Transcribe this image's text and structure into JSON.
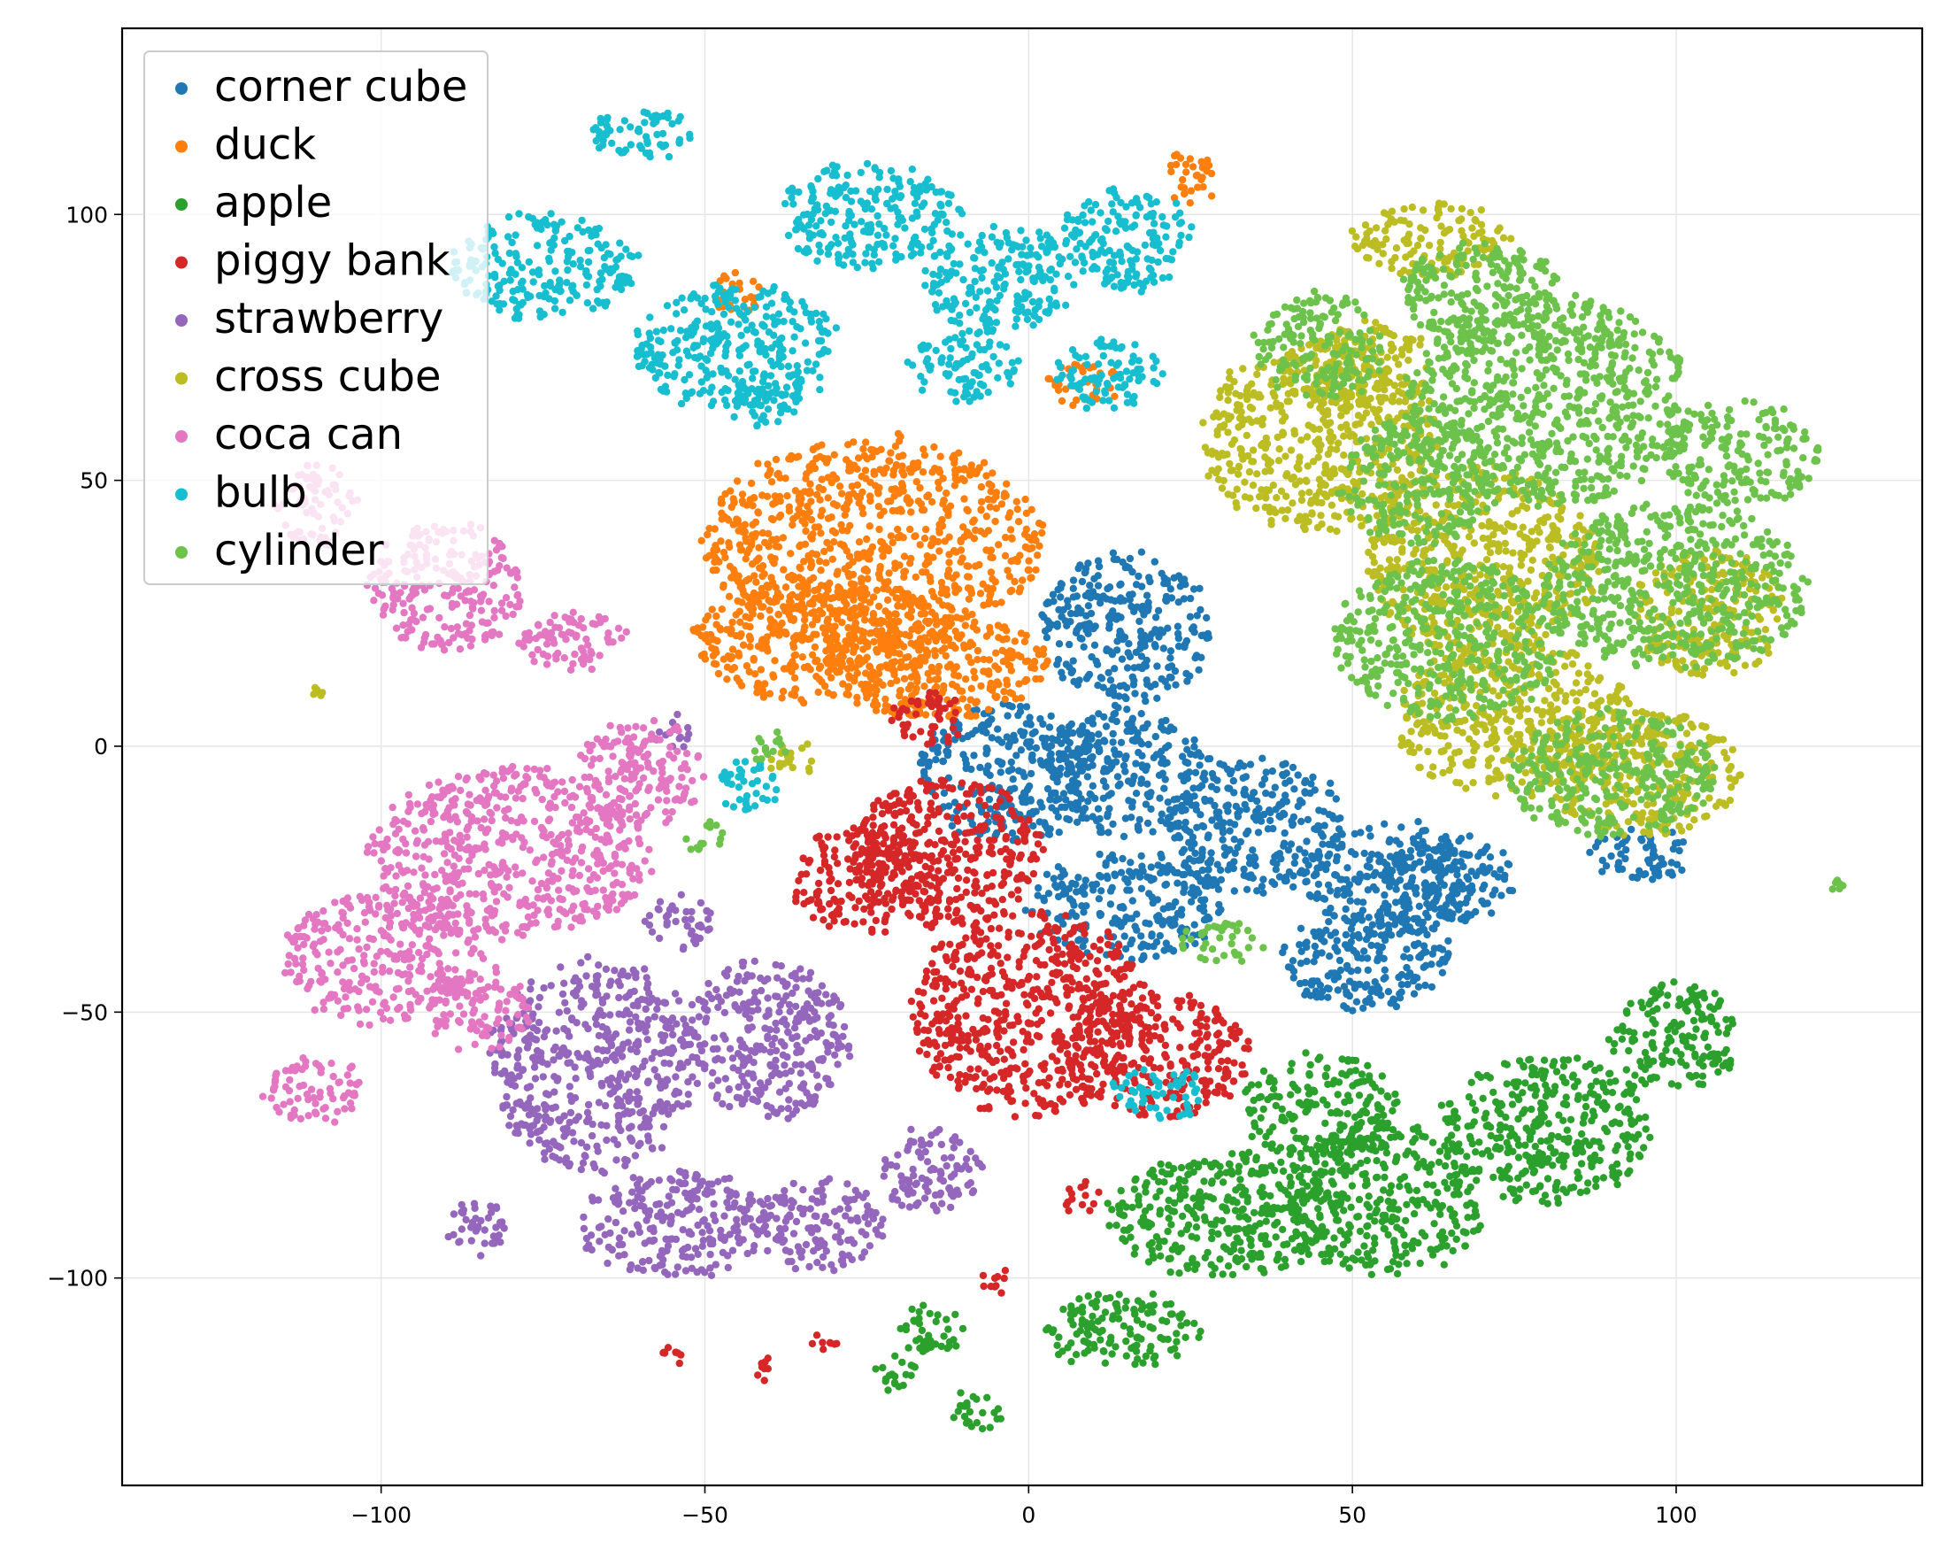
{
  "chart_data": {
    "type": "scatter",
    "title": "",
    "xlabel": "",
    "ylabel": "",
    "xlim": [
      -140,
      138
    ],
    "ylim": [
      -139,
      135
    ],
    "grid": true,
    "legend_position": "top-left",
    "x_ticks": [
      -100,
      -50,
      0,
      50,
      100
    ],
    "x_tick_labels": [
      "−100",
      "−50",
      "0",
      "50",
      "100"
    ],
    "y_ticks": [
      -100,
      -50,
      0,
      50,
      100
    ],
    "y_tick_labels": [
      "−100",
      "−50",
      "0",
      "50",
      "100"
    ],
    "series": [
      {
        "name": "corner cube",
        "color": "#1f77b4",
        "clusters": [
          [
            15,
            22,
            13,
            14
          ],
          [
            -3,
            -5,
            14,
            13
          ],
          [
            15,
            -5,
            13,
            12
          ],
          [
            35,
            -15,
            14,
            13
          ],
          [
            56,
            -25,
            13,
            11
          ],
          [
            15,
            -30,
            15,
            10
          ],
          [
            52,
            -40,
            13,
            10
          ],
          [
            65,
            -25,
            10,
            8
          ],
          [
            95,
            -20,
            8,
            5
          ]
        ]
      },
      {
        "name": "duck",
        "color": "#ff7f0e",
        "clusters": [
          [
            -24,
            38,
            26,
            20
          ],
          [
            -32,
            20,
            20,
            12
          ],
          [
            -15,
            15,
            18,
            10
          ],
          [
            25,
            107,
            4,
            5
          ],
          [
            8,
            68,
            6,
            4
          ],
          [
            -45,
            85,
            4,
            4
          ]
        ]
      },
      {
        "name": "apple",
        "color": "#2ca02c",
        "clusters": [
          [
            30,
            -88,
            18,
            12
          ],
          [
            55,
            -85,
            16,
            14
          ],
          [
            80,
            -72,
            16,
            14
          ],
          [
            100,
            -55,
            10,
            10
          ],
          [
            45,
            -68,
            12,
            10
          ],
          [
            14,
            -110,
            12,
            7
          ],
          [
            -15,
            -110,
            5,
            5
          ],
          [
            -8,
            -125,
            4,
            4
          ],
          [
            -20,
            -118,
            4,
            3
          ]
        ]
      },
      {
        "name": "piggy bank",
        "color": "#d62728",
        "clusters": [
          [
            -13,
            -20,
            15,
            14
          ],
          [
            0,
            -50,
            18,
            20
          ],
          [
            20,
            -58,
            14,
            12
          ],
          [
            -25,
            -25,
            12,
            10
          ],
          [
            -15,
            5,
            6,
            5
          ],
          [
            -55,
            -115,
            2,
            2
          ],
          [
            -41,
            -117,
            2,
            2
          ],
          [
            -31,
            -112,
            2,
            2
          ],
          [
            -5,
            -100,
            3,
            2
          ],
          [
            8,
            -85,
            3,
            3
          ]
        ]
      },
      {
        "name": "strawberry",
        "color": "#9467bd",
        "clusters": [
          [
            -67,
            -60,
            16,
            20
          ],
          [
            -40,
            -55,
            13,
            15
          ],
          [
            -55,
            -90,
            15,
            10
          ],
          [
            -32,
            -90,
            10,
            9
          ],
          [
            -15,
            -80,
            8,
            8
          ],
          [
            -85,
            -90,
            5,
            5
          ],
          [
            -54,
            -33,
            5,
            5
          ],
          [
            -55,
            2,
            3,
            3
          ]
        ]
      },
      {
        "name": "cross cube",
        "color": "#bcbd22",
        "clusters": [
          [
            45,
            58,
            18,
            18
          ],
          [
            70,
            35,
            18,
            18
          ],
          [
            75,
            5,
            18,
            15
          ],
          [
            95,
            -5,
            15,
            12
          ],
          [
            62,
            95,
            12,
            7
          ],
          [
            105,
            25,
            12,
            12
          ],
          [
            53,
            70,
            10,
            10
          ],
          [
            -36,
            -3,
            4,
            3
          ],
          [
            -110,
            10,
            1,
            1
          ]
        ]
      },
      {
        "name": "coca can",
        "color": "#e377c2",
        "clusters": [
          [
            -80,
            -20,
            22,
            16
          ],
          [
            -100,
            -40,
            16,
            12
          ],
          [
            -110,
            -65,
            8,
            6
          ],
          [
            -85,
            -50,
            8,
            8
          ],
          [
            -90,
            30,
            12,
            12
          ],
          [
            -60,
            -5,
            10,
            10
          ],
          [
            -110,
            45,
            6,
            8
          ],
          [
            -70,
            20,
            8,
            6
          ]
        ]
      },
      {
        "name": "bulb",
        "color": "#17becf",
        "clusters": [
          [
            -45,
            75,
            16,
            12
          ],
          [
            -25,
            100,
            14,
            10
          ],
          [
            -5,
            88,
            12,
            10
          ],
          [
            15,
            95,
            10,
            10
          ],
          [
            -10,
            72,
            8,
            7
          ],
          [
            12,
            70,
            8,
            7
          ],
          [
            -75,
            90,
            14,
            10
          ],
          [
            -60,
            115,
            8,
            5
          ],
          [
            -43,
            -7,
            5,
            5
          ],
          [
            20,
            -65,
            7,
            5
          ],
          [
            -40,
            65,
            6,
            5
          ]
        ]
      },
      {
        "name": "cylinder",
        "color": "#6cc24a",
        "clusters": [
          [
            80,
            65,
            22,
            20
          ],
          [
            100,
            30,
            20,
            16
          ],
          [
            65,
            20,
            18,
            15
          ],
          [
            90,
            -5,
            16,
            12
          ],
          [
            60,
            50,
            12,
            12
          ],
          [
            110,
            55,
            12,
            10
          ],
          [
            70,
            85,
            12,
            10
          ],
          [
            45,
            75,
            10,
            10
          ],
          [
            30,
            -37,
            6,
            4
          ],
          [
            -50,
            -17,
            3,
            3
          ],
          [
            -40,
            0,
            3,
            3
          ],
          [
            125,
            -26,
            1,
            1
          ]
        ]
      }
    ]
  }
}
